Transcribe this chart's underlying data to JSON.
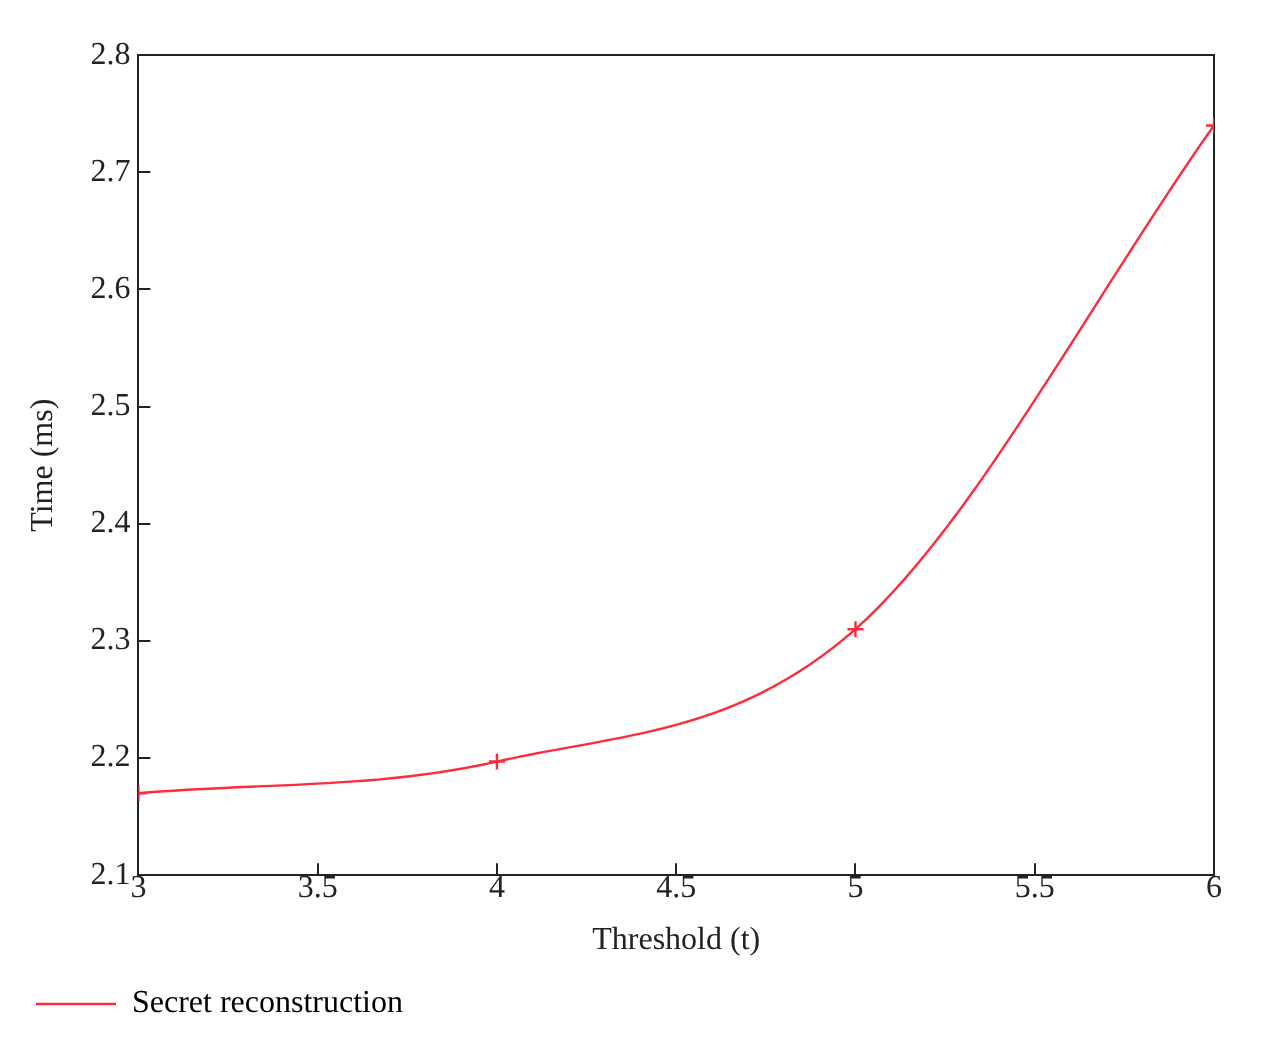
{
  "chart_data": {
    "type": "line",
    "xlabel": "Threshold (t)",
    "ylabel": "Time (ms)",
    "x": [
      3,
      4,
      5,
      6
    ],
    "series": [
      {
        "name": "Secret reconstruction",
        "color": "#ff2a3a",
        "values": [
          2.17,
          2.197,
          2.31,
          2.74
        ]
      }
    ],
    "xlim": [
      3,
      6
    ],
    "xticks": [
      3,
      3.5,
      4,
      4.5,
      5,
      5.5,
      6
    ],
    "ylim": [
      2.1,
      2.8
    ],
    "yticks": [
      2.1,
      2.2,
      2.3,
      2.4,
      2.5,
      2.6,
      2.7,
      2.8
    ],
    "grid": false,
    "legend": "bottom",
    "marker": "cross",
    "line_style": "solid"
  }
}
